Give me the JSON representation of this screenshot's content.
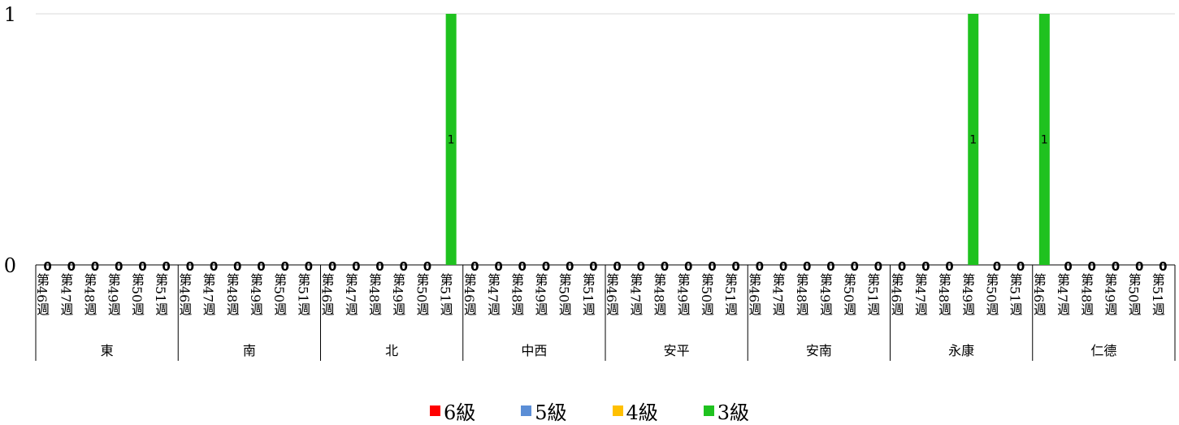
{
  "chart_data": {
    "type": "bar",
    "ylim": [
      0,
      1
    ],
    "y_ticks": [
      "0",
      "1"
    ],
    "weeks": [
      "第46週",
      "第47週",
      "第48週",
      "第49週",
      "第50週",
      "第51週"
    ],
    "districts": [
      "東",
      "南",
      "北",
      "中西",
      "安平",
      "安南",
      "永康",
      "仁德"
    ],
    "series": [
      {
        "name": "6級",
        "color": "#ff0000",
        "values": [
          0,
          0,
          0,
          0,
          0,
          0,
          0,
          0,
          0,
          0,
          0,
          0,
          0,
          0,
          0,
          0,
          0,
          0,
          0,
          0,
          0,
          0,
          0,
          0,
          0,
          0,
          0,
          0,
          0,
          0,
          0,
          0,
          0,
          0,
          0,
          0,
          0,
          0,
          0,
          0,
          0,
          0,
          0,
          0,
          0,
          0,
          0,
          0
        ]
      },
      {
        "name": "5級",
        "color": "#5b8ed6",
        "values": [
          0,
          0,
          0,
          0,
          0,
          0,
          0,
          0,
          0,
          0,
          0,
          0,
          0,
          0,
          0,
          0,
          0,
          0,
          0,
          0,
          0,
          0,
          0,
          0,
          0,
          0,
          0,
          0,
          0,
          0,
          0,
          0,
          0,
          0,
          0,
          0,
          0,
          0,
          0,
          0,
          0,
          0,
          0,
          0,
          0,
          0,
          0,
          0
        ]
      },
      {
        "name": "4級",
        "color": "#ffc000",
        "values": [
          0,
          0,
          0,
          0,
          0,
          0,
          0,
          0,
          0,
          0,
          0,
          0,
          0,
          0,
          0,
          0,
          0,
          0,
          0,
          0,
          0,
          0,
          0,
          0,
          0,
          0,
          0,
          0,
          0,
          0,
          0,
          0,
          0,
          0,
          0,
          0,
          0,
          0,
          0,
          0,
          0,
          0,
          0,
          0,
          0,
          0,
          0,
          0
        ]
      },
      {
        "name": "3級",
        "color": "#1fc21f",
        "values": [
          0,
          0,
          0,
          0,
          0,
          0,
          0,
          0,
          0,
          0,
          0,
          0,
          0,
          0,
          0,
          0,
          0,
          1,
          0,
          0,
          0,
          0,
          0,
          0,
          0,
          0,
          0,
          0,
          0,
          0,
          0,
          0,
          0,
          0,
          0,
          0,
          0,
          0,
          0,
          1,
          0,
          0,
          1,
          0,
          0,
          0,
          0,
          0
        ]
      }
    ],
    "data_labels": [
      "0",
      "0",
      "0",
      "0",
      "0",
      "0",
      "0",
      "0",
      "0",
      "0",
      "0",
      "0",
      "0",
      "0",
      "0",
      "0",
      "0",
      "1",
      "0",
      "0",
      "0",
      "0",
      "0",
      "0",
      "0",
      "0",
      "0",
      "0",
      "0",
      "0",
      "0",
      "0",
      "0",
      "0",
      "0",
      "0",
      "0",
      "0",
      "0",
      "1",
      "0",
      "0",
      "1",
      "0",
      "0",
      "0",
      "0",
      "0"
    ],
    "grid": true,
    "legend_position": "bottom"
  }
}
